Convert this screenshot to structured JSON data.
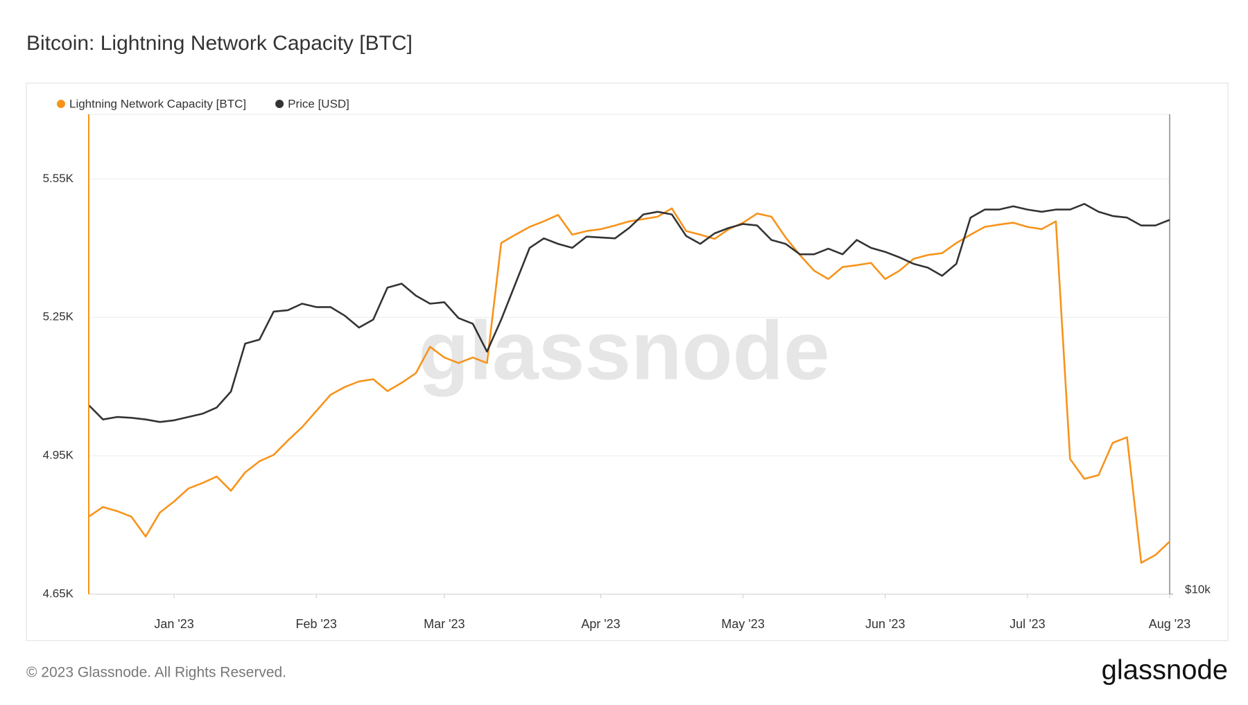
{
  "chart_data": {
    "type": "line",
    "title": "Bitcoin: Lightning Network Capacity [BTC]",
    "categories": [
      null,
      null,
      null,
      null,
      null,
      null,
      "Jan '23",
      null,
      null,
      null,
      null,
      null,
      null,
      null,
      null,
      null,
      "Feb '23",
      null,
      null,
      null,
      null,
      null,
      null,
      null,
      null,
      "Mar '23",
      null,
      null,
      null,
      null,
      null,
      null,
      null,
      null,
      null,
      null,
      "Apr '23",
      null,
      null,
      null,
      null,
      null,
      null,
      null,
      null,
      null,
      "May '23",
      null,
      null,
      null,
      null,
      null,
      null,
      null,
      null,
      null,
      "Jun '23",
      null,
      null,
      null,
      null,
      null,
      null,
      null,
      null,
      null,
      "Jul '23",
      null,
      null,
      null,
      null,
      null,
      null,
      null,
      null,
      null,
      "Aug '23"
    ],
    "series": [
      {
        "name": "Lightning Network Capacity [BTC]",
        "color": "#f7931a",
        "axis": "y",
        "values": [
          4818,
          4839,
          4830,
          4818,
          4775,
          4827,
          4851,
          4879,
          4891,
          4905,
          4874,
          4914,
          4938,
          4952,
          4983,
          5012,
          5047,
          5082,
          5099,
          5111,
          5116,
          5090,
          5108,
          5129,
          5186,
          5163,
          5151,
          5163,
          5151,
          5411,
          5429,
          5446,
          5458,
          5472,
          5429,
          5437,
          5441,
          5449,
          5458,
          5463,
          5468,
          5486,
          5437,
          5429,
          5420,
          5441,
          5455,
          5475,
          5468,
          5423,
          5385,
          5351,
          5333,
          5359,
          5363,
          5368,
          5333,
          5351,
          5377,
          5385,
          5389,
          5411,
          5429,
          5446,
          5451,
          5455,
          5446,
          5441,
          5458,
          4943,
          4900,
          4908,
          4978,
          4990,
          4718,
          4735,
          4764
        ]
      },
      {
        "name": "Price [USD]",
        "color": "#333333",
        "axis": "y2",
        "values": [
          17350,
          16640,
          16760,
          16720,
          16640,
          16520,
          16600,
          16760,
          16920,
          17230,
          18050,
          20760,
          21000,
          22790,
          22880,
          23320,
          23090,
          23090,
          22520,
          21750,
          22260,
          24430,
          24720,
          23870,
          23320,
          23420,
          22360,
          22000,
          20280,
          22260,
          24720,
          27440,
          28210,
          27760,
          27440,
          28350,
          28280,
          28210,
          29080,
          30250,
          30480,
          30250,
          28410,
          27760,
          28620,
          29080,
          29420,
          29290,
          28080,
          27760,
          26930,
          26930,
          27370,
          26930,
          28080,
          27440,
          27120,
          26690,
          26190,
          25900,
          25290,
          26190,
          29970,
          30680,
          30680,
          30970,
          30680,
          30480,
          30680,
          30680,
          31190,
          30480,
          30110,
          29970,
          29290,
          29290,
          29770
        ]
      }
    ],
    "ylim": [
      4650,
      5690
    ],
    "yticks": [
      {
        "value": 4650,
        "label": "4.65K"
      },
      {
        "value": 4950,
        "label": "4.95K"
      },
      {
        "value": 5250,
        "label": "5.25K"
      },
      {
        "value": 5550,
        "label": "5.55K"
      }
    ],
    "y2lim": [
      10000,
      40500
    ],
    "y2ticks": [
      {
        "value": 10000,
        "label": "$10k"
      }
    ],
    "y2log": true,
    "grid": true,
    "legend": "top-left"
  },
  "watermark": "glassnode",
  "footer": {
    "copyright": "© 2023 Glassnode. All Rights Reserved.",
    "logo": "glassnode"
  }
}
